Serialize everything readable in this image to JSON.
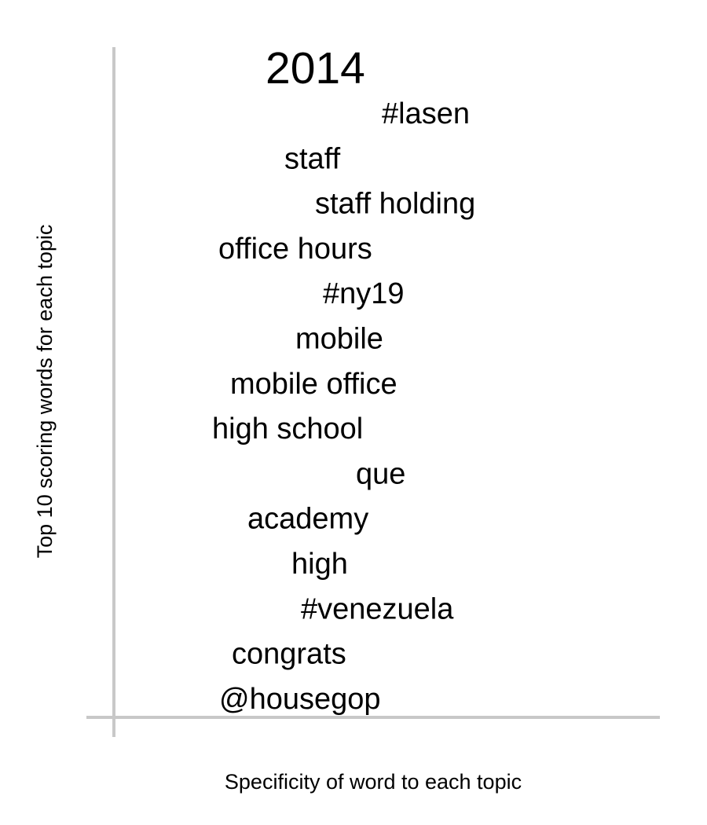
{
  "chart_data": {
    "type": "text-ranked-list",
    "title": "2014",
    "xlabel": "Specificity of word to each topic",
    "ylabel": "Top 10 scoring words for each topic",
    "words": [
      {
        "rank": 1,
        "word": "#lasen"
      },
      {
        "rank": 2,
        "word": "staff"
      },
      {
        "rank": 3,
        "word": "staff holding"
      },
      {
        "rank": 4,
        "word": "office hours"
      },
      {
        "rank": 5,
        "word": "#ny19"
      },
      {
        "rank": 6,
        "word": "mobile"
      },
      {
        "rank": 7,
        "word": "mobile office"
      },
      {
        "rank": 8,
        "word": "high school"
      },
      {
        "rank": 9,
        "word": "que"
      },
      {
        "rank": 10,
        "word": "academy"
      },
      {
        "rank": 11,
        "word": "high"
      },
      {
        "rank": 12,
        "word": "#venezuela"
      },
      {
        "rank": 13,
        "word": "congrats"
      },
      {
        "rank": 14,
        "word": "@housegop"
      }
    ],
    "axis_color": "#c8c8c8",
    "text_color": "#000000"
  }
}
